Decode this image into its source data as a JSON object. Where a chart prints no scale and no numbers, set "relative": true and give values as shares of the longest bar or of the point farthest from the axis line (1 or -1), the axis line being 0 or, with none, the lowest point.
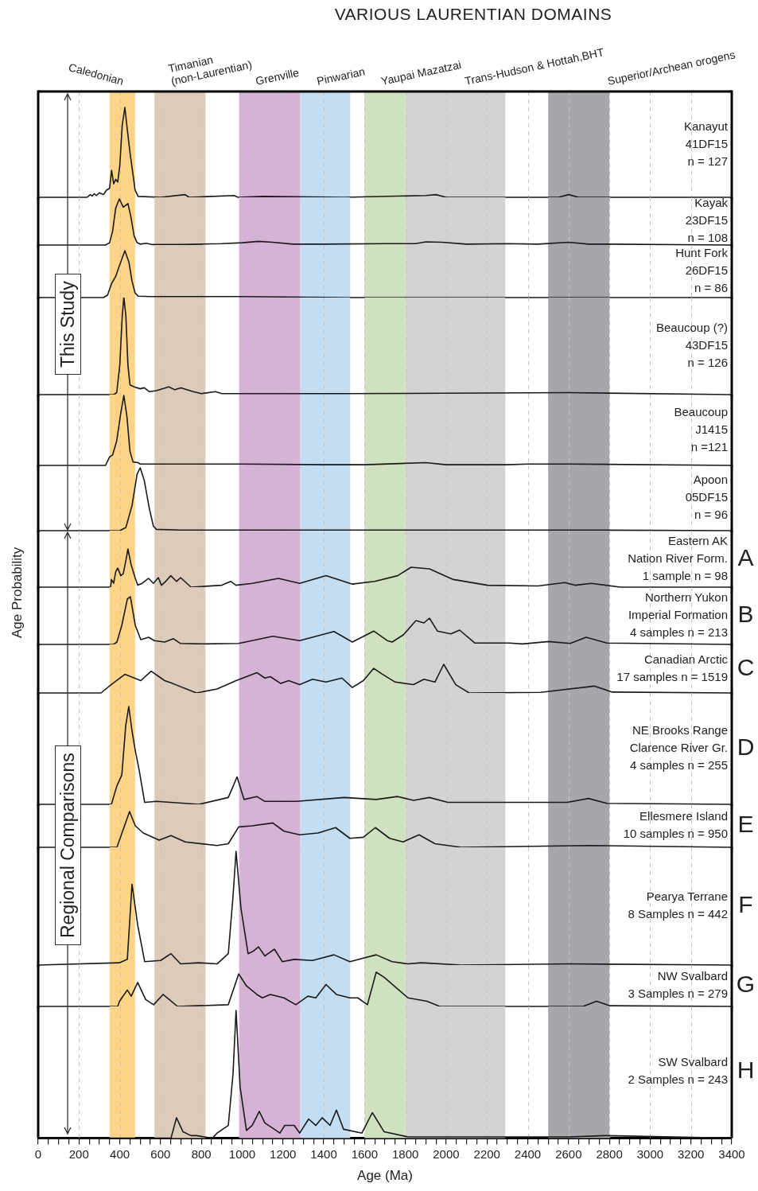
{
  "chart_data": [
    {
      "type": "other",
      "title": "VARIOUS LAURENTIAN DOMAINS",
      "ylabel": "Age Probability",
      "annotations": [
        "This Study",
        "Regional Comparisons"
      ]
    },
    {
      "type": "line",
      "relative": true,
      "xlim": [
        0,
        3400
      ],
      "xticks": [
        0,
        200,
        400,
        600,
        800,
        1000,
        1200,
        1400,
        1600,
        1800,
        2000,
        2200,
        2400,
        2600,
        2800,
        3000,
        3200,
        3400
      ],
      "tick_labels": false,
      "grid": "x",
      "color": "#1a1a1a",
      "bands": [
        {
          "axis": "x",
          "from": 350,
          "to": 475,
          "label": "Caledonian",
          "color": "#fdd488"
        },
        {
          "axis": "x",
          "from": 570,
          "to": 820,
          "label": "Timanian\n(non-Laurentian)",
          "color": "#dccbb9"
        },
        {
          "axis": "x",
          "from": 985,
          "to": 1285,
          "label": "Grenville",
          "color": "#d6b2d7"
        },
        {
          "axis": "x",
          "from": 1285,
          "to": 1530,
          "label": "Pinwarian",
          "color": "#c3ddf2"
        },
        {
          "axis": "x",
          "from": 1600,
          "to": 1800,
          "label": "Yaupai Mazatzai",
          "color": "#cfe1bf"
        },
        {
          "axis": "x",
          "from": 1800,
          "to": 2290,
          "label": "Trans-Hudson & Hottah,BHT",
          "color": "#d2d3d5"
        },
        {
          "axis": "x",
          "from": 2500,
          "to": 2800,
          "label": "Superior/Archean orogens",
          "color": "#a6a7aa"
        }
      ],
      "annotations": [
        "Kanayut",
        "41DF15",
        "n = 127"
      ],
      "x": [
        0,
        240,
        255,
        265,
        275,
        285,
        300,
        320,
        335,
        350,
        360,
        370,
        380,
        390,
        400,
        412,
        425,
        437,
        450,
        462,
        475,
        490,
        600,
        720,
        740,
        960,
        980,
        1100,
        1500,
        1900,
        1950,
        2000,
        2550,
        2600,
        2650,
        3400
      ],
      "values": [
        0,
        0,
        0.03,
        0.015,
        0.04,
        0.02,
        0.05,
        0.03,
        0.08,
        0.1,
        0.3,
        0.15,
        0.2,
        0.17,
        0.35,
        0.8,
        1,
        0.75,
        0.5,
        0.3,
        0.08,
        0.01,
        0,
        0.03,
        0,
        0.02,
        0,
        0.01,
        0,
        0.02,
        0.03,
        0,
        0,
        0.03,
        0,
        0
      ]
    },
    {
      "type": "line",
      "relative": true,
      "xlim": [
        0,
        3400
      ],
      "xticks": [
        0,
        200,
        400,
        600,
        800,
        1000,
        1200,
        1400,
        1600,
        1800,
        2000,
        2200,
        2400,
        2600,
        2800,
        3000,
        3200,
        3400
      ],
      "tick_labels": false,
      "grid": "x",
      "color": "#1a1a1a",
      "bands": [
        {
          "axis": "x",
          "from": 350,
          "to": 475,
          "color": "#fdd488"
        },
        {
          "axis": "x",
          "from": 570,
          "to": 820,
          "color": "#dccbb9"
        },
        {
          "axis": "x",
          "from": 985,
          "to": 1285,
          "color": "#d6b2d7"
        },
        {
          "axis": "x",
          "from": 1285,
          "to": 1530,
          "color": "#c3ddf2"
        },
        {
          "axis": "x",
          "from": 1600,
          "to": 1800,
          "color": "#cfe1bf"
        },
        {
          "axis": "x",
          "from": 1800,
          "to": 2290,
          "color": "#d2d3d5"
        },
        {
          "axis": "x",
          "from": 2500,
          "to": 2800,
          "color": "#a6a7aa"
        }
      ],
      "annotations": [
        "Kayak",
        "23DF15",
        "n = 108"
      ],
      "x": [
        0,
        330,
        350,
        365,
        380,
        398,
        417,
        440,
        455,
        470,
        485,
        500,
        530,
        560,
        700,
        800,
        900,
        1000,
        1080,
        1150,
        1250,
        1400,
        1700,
        1850,
        1900,
        1980,
        2100,
        2300,
        2450,
        2600,
        2700,
        2800,
        3400
      ],
      "values": [
        0,
        0,
        0.05,
        0.3,
        0.8,
        1,
        0.82,
        0.9,
        0.6,
        0.2,
        0.05,
        0.02,
        0.04,
        0.01,
        0.01,
        0.02,
        0.03,
        0.05,
        0.08,
        0.06,
        0.02,
        0.02,
        0.03,
        0.03,
        0.07,
        0.06,
        0.02,
        0.03,
        0.02,
        0.06,
        0.02,
        0.02,
        0
      ]
    },
    {
      "type": "line",
      "relative": true,
      "xlim": [
        0,
        3400
      ],
      "xticks": [
        0,
        200,
        400,
        600,
        800,
        1000,
        1200,
        1400,
        1600,
        1800,
        2000,
        2200,
        2400,
        2600,
        2800,
        3000,
        3200,
        3400
      ],
      "tick_labels": false,
      "grid": "x",
      "color": "#1a1a1a",
      "bands": [
        {
          "axis": "x",
          "from": 350,
          "to": 475,
          "color": "#fdd488"
        },
        {
          "axis": "x",
          "from": 570,
          "to": 820,
          "color": "#dccbb9"
        },
        {
          "axis": "x",
          "from": 985,
          "to": 1285,
          "color": "#d6b2d7"
        },
        {
          "axis": "x",
          "from": 1285,
          "to": 1530,
          "color": "#c3ddf2"
        },
        {
          "axis": "x",
          "from": 1600,
          "to": 1800,
          "color": "#cfe1bf"
        },
        {
          "axis": "x",
          "from": 1800,
          "to": 2290,
          "color": "#d2d3d5"
        },
        {
          "axis": "x",
          "from": 2500,
          "to": 2800,
          "color": "#a6a7aa"
        }
      ],
      "annotations": [
        "Hunt Fork",
        "26DF15",
        "n = 86"
      ],
      "x": [
        0,
        320,
        340,
        360,
        380,
        400,
        425,
        445,
        460,
        475,
        490,
        550,
        1000,
        1500,
        3400
      ],
      "values": [
        0,
        0,
        0.05,
        0.3,
        0.45,
        0.7,
        1,
        0.75,
        0.35,
        0.1,
        0.03,
        0.02,
        0.02,
        0,
        0
      ]
    },
    {
      "type": "line",
      "relative": true,
      "xlim": [
        0,
        3400
      ],
      "xticks": [
        0,
        200,
        400,
        600,
        800,
        1000,
        1200,
        1400,
        1600,
        1800,
        2000,
        2200,
        2400,
        2600,
        2800,
        3000,
        3200,
        3400
      ],
      "tick_labels": false,
      "grid": "x",
      "color": "#1a1a1a",
      "bands": [
        {
          "axis": "x",
          "from": 350,
          "to": 475,
          "color": "#fdd488"
        },
        {
          "axis": "x",
          "from": 570,
          "to": 820,
          "color": "#dccbb9"
        },
        {
          "axis": "x",
          "from": 985,
          "to": 1285,
          "color": "#d6b2d7"
        },
        {
          "axis": "x",
          "from": 1285,
          "to": 1530,
          "color": "#c3ddf2"
        },
        {
          "axis": "x",
          "from": 1600,
          "to": 1800,
          "color": "#cfe1bf"
        },
        {
          "axis": "x",
          "from": 1800,
          "to": 2290,
          "color": "#d2d3d5"
        },
        {
          "axis": "x",
          "from": 2500,
          "to": 2800,
          "color": "#a6a7aa"
        }
      ],
      "annotations": [
        "Beaucoup (?)",
        "43DF15",
        "n = 126"
      ],
      "x": [
        0,
        370,
        385,
        400,
        412,
        420,
        430,
        440,
        450,
        470,
        500,
        520,
        545,
        580,
        640,
        670,
        700,
        760,
        800,
        870,
        900,
        1500,
        2600,
        3400
      ],
      "values": [
        0,
        0,
        0.02,
        0.3,
        0.8,
        1,
        0.8,
        0.3,
        0.1,
        0.08,
        0.06,
        0.07,
        0.03,
        0.04,
        0.08,
        0.05,
        0.07,
        0.03,
        0.01,
        0.03,
        0.01,
        0.01,
        0.02,
        0
      ]
    },
    {
      "type": "line",
      "relative": true,
      "xlim": [
        0,
        3400
      ],
      "xticks": [
        0,
        200,
        400,
        600,
        800,
        1000,
        1200,
        1400,
        1600,
        1800,
        2000,
        2200,
        2400,
        2600,
        2800,
        3000,
        3200,
        3400
      ],
      "tick_labels": false,
      "grid": "x",
      "color": "#1a1a1a",
      "bands": [
        {
          "axis": "x",
          "from": 350,
          "to": 475,
          "color": "#fdd488"
        },
        {
          "axis": "x",
          "from": 570,
          "to": 820,
          "color": "#dccbb9"
        },
        {
          "axis": "x",
          "from": 985,
          "to": 1285,
          "color": "#d6b2d7"
        },
        {
          "axis": "x",
          "from": 1285,
          "to": 1530,
          "color": "#c3ddf2"
        },
        {
          "axis": "x",
          "from": 1600,
          "to": 1800,
          "color": "#cfe1bf"
        },
        {
          "axis": "x",
          "from": 1800,
          "to": 2290,
          "color": "#d2d3d5"
        },
        {
          "axis": "x",
          "from": 2500,
          "to": 2800,
          "color": "#a6a7aa"
        }
      ],
      "annotations": [
        "Beaucoup",
        "J1415",
        "n =121"
      ],
      "x": [
        0,
        330,
        350,
        365,
        385,
        405,
        420,
        435,
        450,
        465,
        490,
        500,
        1000,
        1400,
        1600,
        1900,
        2000,
        2300,
        2400,
        2600,
        3400
      ],
      "values": [
        0,
        0,
        0.12,
        0.15,
        0.35,
        0.75,
        1,
        0.7,
        0.2,
        0.05,
        0.04,
        0.02,
        0.02,
        0.01,
        0.01,
        0.04,
        0.01,
        0.01,
        0.02,
        0.02,
        0
      ]
    },
    {
      "type": "line",
      "relative": true,
      "xlim": [
        0,
        3400
      ],
      "xticks": [
        0,
        200,
        400,
        600,
        800,
        1000,
        1200,
        1400,
        1600,
        1800,
        2000,
        2200,
        2400,
        2600,
        2800,
        3000,
        3200,
        3400
      ],
      "tick_labels": false,
      "grid": "x",
      "color": "#1a1a1a",
      "bands": [
        {
          "axis": "x",
          "from": 350,
          "to": 475,
          "color": "#fdd488"
        },
        {
          "axis": "x",
          "from": 570,
          "to": 820,
          "color": "#dccbb9"
        },
        {
          "axis": "x",
          "from": 985,
          "to": 1285,
          "color": "#d6b2d7"
        },
        {
          "axis": "x",
          "from": 1285,
          "to": 1530,
          "color": "#c3ddf2"
        },
        {
          "axis": "x",
          "from": 1600,
          "to": 1800,
          "color": "#cfe1bf"
        },
        {
          "axis": "x",
          "from": 1800,
          "to": 2290,
          "color": "#d2d3d5"
        },
        {
          "axis": "x",
          "from": 2500,
          "to": 2800,
          "color": "#a6a7aa"
        }
      ],
      "annotations": [
        "Apoon",
        "05DF15",
        "n = 96"
      ],
      "x": [
        0,
        400,
        430,
        460,
        485,
        500,
        520,
        545,
        565,
        580,
        700,
        1500,
        2600,
        3400
      ],
      "values": [
        0,
        0,
        0.05,
        0.4,
        0.9,
        1,
        0.8,
        0.35,
        0.07,
        0.02,
        0.01,
        0.01,
        0.01,
        0
      ]
    },
    {
      "type": "line",
      "relative": true,
      "subtitle": "A",
      "xlim": [
        0,
        3400
      ],
      "xticks": [
        0,
        200,
        400,
        600,
        800,
        1000,
        1200,
        1400,
        1600,
        1800,
        2000,
        2200,
        2400,
        2600,
        2800,
        3000,
        3200,
        3400
      ],
      "tick_labels": false,
      "grid": "x",
      "color": "#1a1a1a",
      "bands": [
        {
          "axis": "x",
          "from": 350,
          "to": 475,
          "color": "#fdd488"
        },
        {
          "axis": "x",
          "from": 570,
          "to": 820,
          "color": "#dccbb9"
        },
        {
          "axis": "x",
          "from": 985,
          "to": 1285,
          "color": "#d6b2d7"
        },
        {
          "axis": "x",
          "from": 1285,
          "to": 1530,
          "color": "#c3ddf2"
        },
        {
          "axis": "x",
          "from": 1600,
          "to": 1800,
          "color": "#cfe1bf"
        },
        {
          "axis": "x",
          "from": 1800,
          "to": 2290,
          "color": "#d2d3d5"
        },
        {
          "axis": "x",
          "from": 2500,
          "to": 2800,
          "color": "#a6a7aa"
        }
      ],
      "annotations": [
        "Eastern AK",
        "Nation River Form.",
        "1 sample n = 98"
      ],
      "x": [
        0,
        355,
        359,
        370,
        380,
        390,
        405,
        417,
        430,
        440,
        455,
        475,
        488,
        510,
        541,
        565,
        589,
        604,
        625,
        650,
        678,
        698,
        749,
        900,
        944,
        970,
        1050,
        1178,
        1282,
        1411,
        1540,
        1650,
        1762,
        1828,
        1918,
        2035,
        2203,
        2450,
        2581,
        2632,
        2710,
        2854,
        3400
      ],
      "values": [
        0,
        0,
        0.2,
        0.1,
        0.4,
        0.5,
        0.3,
        0.35,
        0.7,
        1,
        0.6,
        0.25,
        0.05,
        0.1,
        0.23,
        0.1,
        0.25,
        0.05,
        0.15,
        0.3,
        0.15,
        0.25,
        0,
        0.05,
        0.15,
        0.05,
        0.1,
        0.23,
        0.1,
        0.3,
        0.08,
        0.15,
        0.3,
        0.52,
        0.48,
        0.2,
        0.05,
        0.03,
        0.12,
        0.05,
        0.1,
        0,
        0
      ]
    },
    {
      "type": "line",
      "relative": true,
      "subtitle": "B",
      "xlim": [
        0,
        3400
      ],
      "xticks": [
        0,
        200,
        400,
        600,
        800,
        1000,
        1200,
        1400,
        1600,
        1800,
        2000,
        2200,
        2400,
        2600,
        2800,
        3000,
        3200,
        3400
      ],
      "tick_labels": false,
      "grid": "x",
      "color": "#1a1a1a",
      "bands": [
        {
          "axis": "x",
          "from": 350,
          "to": 475,
          "color": "#fdd488"
        },
        {
          "axis": "x",
          "from": 570,
          "to": 820,
          "color": "#dccbb9"
        },
        {
          "axis": "x",
          "from": 985,
          "to": 1285,
          "color": "#d6b2d7"
        },
        {
          "axis": "x",
          "from": 1285,
          "to": 1530,
          "color": "#c3ddf2"
        },
        {
          "axis": "x",
          "from": 1600,
          "to": 1800,
          "color": "#cfe1bf"
        },
        {
          "axis": "x",
          "from": 1800,
          "to": 2290,
          "color": "#d2d3d5"
        },
        {
          "axis": "x",
          "from": 2500,
          "to": 2800,
          "color": "#a6a7aa"
        }
      ],
      "annotations": [
        "Northern Yukon",
        "Imperial Formation",
        "4 samples n = 213"
      ],
      "x": [
        0,
        370,
        386,
        410,
        437,
        452,
        476,
        503,
        541,
        570,
        620,
        663,
        698,
        800,
        983,
        1150,
        1282,
        1450,
        1540,
        1645,
        1711,
        1735,
        1790,
        1852,
        1891,
        1918,
        1957,
        2023,
        2066,
        2140,
        2308,
        2374,
        2503,
        2608,
        2686,
        2788,
        3400
      ],
      "values": [
        0,
        0,
        0.05,
        0.4,
        0.95,
        1,
        0.4,
        0.1,
        0.15,
        0.08,
        0.05,
        0.12,
        0.02,
        0.01,
        0.02,
        0.17,
        0.08,
        0.27,
        0.05,
        0.28,
        0.08,
        0.05,
        0.2,
        0.5,
        0.45,
        0.55,
        0.28,
        0.22,
        0.3,
        0.03,
        0.03,
        0.01,
        0.06,
        0.02,
        0.15,
        0.03,
        0
      ]
    },
    {
      "type": "line",
      "relative": true,
      "subtitle": "C",
      "xlim": [
        0,
        3400
      ],
      "xticks": [
        0,
        200,
        400,
        600,
        800,
        1000,
        1200,
        1400,
        1600,
        1800,
        2000,
        2200,
        2400,
        2600,
        2800,
        3000,
        3200,
        3400
      ],
      "tick_labels": false,
      "grid": "x",
      "color": "#1a1a1a",
      "bands": [
        {
          "axis": "x",
          "from": 350,
          "to": 475,
          "color": "#fdd488"
        },
        {
          "axis": "x",
          "from": 570,
          "to": 820,
          "color": "#dccbb9"
        },
        {
          "axis": "x",
          "from": 985,
          "to": 1285,
          "color": "#d6b2d7"
        },
        {
          "axis": "x",
          "from": 1285,
          "to": 1530,
          "color": "#c3ddf2"
        },
        {
          "axis": "x",
          "from": 1600,
          "to": 1800,
          "color": "#cfe1bf"
        },
        {
          "axis": "x",
          "from": 1800,
          "to": 2290,
          "color": "#d2d3d5"
        },
        {
          "axis": "x",
          "from": 2500,
          "to": 2800,
          "color": "#a6a7aa"
        }
      ],
      "annotations": [
        "Canadian Arctic",
        "17 samples n = 1519"
      ],
      "x": [
        0,
        308,
        360,
        425,
        503,
        554,
        620,
        659,
        776,
        877,
        970,
        1072,
        1111,
        1138,
        1189,
        1228,
        1282,
        1345,
        1411,
        1489,
        1540,
        1594,
        1645,
        1684,
        1750,
        1840,
        1891,
        1945,
        1988,
        2047,
        2113,
        2464,
        2725,
        2815,
        3400
      ],
      "values": [
        0,
        0,
        0.3,
        0.65,
        0.43,
        0.76,
        0.43,
        0.33,
        0,
        0.14,
        0.43,
        0.71,
        0.52,
        0.57,
        0.33,
        0.43,
        0.29,
        0.48,
        0.38,
        0.52,
        0.19,
        0.43,
        0.86,
        0.67,
        0.38,
        0.29,
        0.48,
        0.38,
        1,
        0.29,
        0,
        0.02,
        0.24,
        0.03,
        0
      ]
    },
    {
      "type": "line",
      "relative": true,
      "subtitle": "D",
      "xlim": [
        0,
        3400
      ],
      "xticks": [
        0,
        200,
        400,
        600,
        800,
        1000,
        1200,
        1400,
        1600,
        1800,
        2000,
        2200,
        2400,
        2600,
        2800,
        3000,
        3200,
        3400
      ],
      "tick_labels": false,
      "grid": "x",
      "color": "#1a1a1a",
      "bands": [
        {
          "axis": "x",
          "from": 350,
          "to": 475,
          "color": "#fdd488"
        },
        {
          "axis": "x",
          "from": 570,
          "to": 820,
          "color": "#dccbb9"
        },
        {
          "axis": "x",
          "from": 985,
          "to": 1285,
          "color": "#d6b2d7"
        },
        {
          "axis": "x",
          "from": 1285,
          "to": 1530,
          "color": "#c3ddf2"
        },
        {
          "axis": "x",
          "from": 1600,
          "to": 1800,
          "color": "#cfe1bf"
        },
        {
          "axis": "x",
          "from": 1800,
          "to": 2290,
          "color": "#d2d3d5"
        },
        {
          "axis": "x",
          "from": 2500,
          "to": 2800,
          "color": "#a6a7aa"
        }
      ],
      "annotations": [
        "NE Brooks Range",
        "Clarence River Gr.",
        "4 samples n = 255"
      ],
      "x": [
        0,
        359,
        386,
        410,
        429,
        444,
        460,
        476,
        495,
        522,
        581,
        788,
        932,
        975,
        1009,
        1072,
        1111,
        1267,
        1501,
        1657,
        1762,
        1840,
        1918,
        2008,
        2593,
        2698,
        2788,
        3400
      ],
      "values": [
        0,
        0,
        0.19,
        0.3,
        0.8,
        1,
        0.75,
        0.55,
        0.35,
        0.02,
        0.03,
        0,
        0.07,
        0.28,
        0.05,
        0.08,
        0.03,
        0.03,
        0.07,
        0.05,
        0.08,
        0.04,
        0.07,
        0.02,
        0.02,
        0.06,
        0.01,
        0
      ]
    },
    {
      "type": "line",
      "relative": true,
      "subtitle": "E",
      "xlim": [
        0,
        3400
      ],
      "xticks": [
        0,
        200,
        400,
        600,
        800,
        1000,
        1200,
        1400,
        1600,
        1800,
        2000,
        2200,
        2400,
        2600,
        2800,
        3000,
        3200,
        3400
      ],
      "tick_labels": false,
      "grid": "x",
      "color": "#1a1a1a",
      "bands": [
        {
          "axis": "x",
          "from": 350,
          "to": 475,
          "color": "#fdd488"
        },
        {
          "axis": "x",
          "from": 570,
          "to": 820,
          "color": "#dccbb9"
        },
        {
          "axis": "x",
          "from": 985,
          "to": 1285,
          "color": "#d6b2d7"
        },
        {
          "axis": "x",
          "from": 1285,
          "to": 1530,
          "color": "#c3ddf2"
        },
        {
          "axis": "x",
          "from": 1600,
          "to": 1800,
          "color": "#cfe1bf"
        },
        {
          "axis": "x",
          "from": 1800,
          "to": 2290,
          "color": "#d2d3d5"
        },
        {
          "axis": "x",
          "from": 2500,
          "to": 2800,
          "color": "#a6a7aa"
        }
      ],
      "annotations": [
        "Ellesmere Island",
        "10 samples n = 950"
      ],
      "x": [
        0,
        386,
        448,
        476,
        515,
        593,
        651,
        721,
        877,
        932,
        983,
        1049,
        1150,
        1205,
        1282,
        1372,
        1458,
        1528,
        1594,
        1653,
        1723,
        1789,
        1867,
        1945,
        2074,
        2698,
        3400
      ],
      "values": [
        0,
        0,
        1,
        0.6,
        0.4,
        0.2,
        0.33,
        0.15,
        0.05,
        0.1,
        0.57,
        0.6,
        0.68,
        0.45,
        0.35,
        0.4,
        0.55,
        0.25,
        0.28,
        0.55,
        0.25,
        0.15,
        0.35,
        0.1,
        0,
        0.05,
        0
      ]
    },
    {
      "type": "line",
      "relative": true,
      "subtitle": "F",
      "xlim": [
        0,
        3400
      ],
      "xticks": [
        0,
        200,
        400,
        600,
        800,
        1000,
        1200,
        1400,
        1600,
        1800,
        2000,
        2200,
        2400,
        2600,
        2800,
        3000,
        3200,
        3400
      ],
      "tick_labels": false,
      "grid": "x",
      "color": "#1a1a1a",
      "bands": [
        {
          "axis": "x",
          "from": 350,
          "to": 475,
          "color": "#fdd488"
        },
        {
          "axis": "x",
          "from": 570,
          "to": 820,
          "color": "#dccbb9"
        },
        {
          "axis": "x",
          "from": 985,
          "to": 1285,
          "color": "#d6b2d7"
        },
        {
          "axis": "x",
          "from": 1285,
          "to": 1530,
          "color": "#c3ddf2"
        },
        {
          "axis": "x",
          "from": 1600,
          "to": 1800,
          "color": "#cfe1bf"
        },
        {
          "axis": "x",
          "from": 1800,
          "to": 2290,
          "color": "#d2d3d5"
        },
        {
          "axis": "x",
          "from": 2500,
          "to": 2800,
          "color": "#a6a7aa"
        }
      ],
      "annotations": [
        "Pearya Terrane",
        "8 Samples n = 442"
      ],
      "x": [
        0,
        398,
        437,
        460,
        488,
        522,
        600,
        651,
        698,
        788,
        877,
        932,
        955,
        970,
        994,
        1029,
        1053,
        1080,
        1111,
        1158,
        1197,
        1255,
        1345,
        1450,
        1528,
        1657,
        1735,
        1813,
        1879,
        2074,
        2600,
        3400
      ],
      "values": [
        0,
        0.02,
        0.05,
        0.71,
        0.35,
        0.03,
        0.04,
        0.1,
        0.01,
        0.02,
        0.01,
        0.1,
        0.6,
        1,
        0.5,
        0.1,
        0.12,
        0.16,
        0.08,
        0.14,
        0.03,
        0.05,
        0.04,
        0.09,
        0.03,
        0.09,
        0.03,
        0.01,
        0.02,
        0,
        0.01,
        0
      ]
    },
    {
      "type": "line",
      "relative": true,
      "subtitle": "G",
      "xlim": [
        0,
        3400
      ],
      "xticks": [
        0,
        200,
        400,
        600,
        800,
        1000,
        1200,
        1400,
        1600,
        1800,
        2000,
        2200,
        2400,
        2600,
        2800,
        3000,
        3200,
        3400
      ],
      "tick_labels": false,
      "grid": "x",
      "color": "#1a1a1a",
      "bands": [
        {
          "axis": "x",
          "from": 350,
          "to": 475,
          "color": "#fdd488"
        },
        {
          "axis": "x",
          "from": 570,
          "to": 820,
          "color": "#dccbb9"
        },
        {
          "axis": "x",
          "from": 985,
          "to": 1285,
          "color": "#d6b2d7"
        },
        {
          "axis": "x",
          "from": 1285,
          "to": 1530,
          "color": "#c3ddf2"
        },
        {
          "axis": "x",
          "from": 1600,
          "to": 1800,
          "color": "#cfe1bf"
        },
        {
          "axis": "x",
          "from": 1800,
          "to": 2290,
          "color": "#d2d3d5"
        },
        {
          "axis": "x",
          "from": 2500,
          "to": 2800,
          "color": "#a6a7aa"
        }
      ],
      "annotations": [
        "NW Svalbard",
        "3 Samples n = 279"
      ],
      "x": [
        0,
        390,
        398,
        410,
        437,
        456,
        488,
        527,
        566,
        612,
        659,
        683,
        932,
        983,
        1021,
        1072,
        1099,
        1138,
        1205,
        1263,
        1322,
        1361,
        1411,
        1462,
        1528,
        1567,
        1614,
        1657,
        1696,
        1813,
        1906,
        1969,
        2671,
        2737,
        2803,
        3400
      ],
      "values": [
        0,
        0,
        0.14,
        0.25,
        0.48,
        0.3,
        0.7,
        0.2,
        0.05,
        0.35,
        0.12,
        0,
        0.05,
        0.95,
        0.6,
        0.35,
        0.25,
        0.35,
        0.25,
        0.05,
        0.3,
        0.25,
        0.64,
        0.35,
        0.25,
        0.25,
        0.05,
        1,
        0.85,
        0.25,
        0.15,
        0,
        0,
        0.15,
        0.02,
        0
      ]
    },
    {
      "type": "line",
      "relative": true,
      "subtitle": "H",
      "xlabel": "Age (Ma)",
      "xlim": [
        0,
        3400
      ],
      "xticks": [
        0,
        {
          "value": 50,
          "label": null
        },
        {
          "value": 100,
          "label": null
        },
        {
          "value": 150,
          "label": null
        },
        200,
        {
          "value": 250,
          "label": null
        },
        {
          "value": 300,
          "label": null
        },
        {
          "value": 350,
          "label": null
        },
        400,
        {
          "value": 450,
          "label": null
        },
        {
          "value": 500,
          "label": null
        },
        {
          "value": 550,
          "label": null
        },
        600,
        {
          "value": 650,
          "label": null
        },
        {
          "value": 700,
          "label": null
        },
        {
          "value": 750,
          "label": null
        },
        800,
        {
          "value": 850,
          "label": null
        },
        {
          "value": 900,
          "label": null
        },
        {
          "value": 950,
          "label": null
        },
        1000,
        {
          "value": 1050,
          "label": null
        },
        {
          "value": 1100,
          "label": null
        },
        {
          "value": 1150,
          "label": null
        },
        1200,
        {
          "value": 1250,
          "label": null
        },
        {
          "value": 1300,
          "label": null
        },
        {
          "value": 1350,
          "label": null
        },
        1400,
        {
          "value": 1450,
          "label": null
        },
        {
          "value": 1500,
          "label": null
        },
        {
          "value": 1550,
          "label": null
        },
        1600,
        {
          "value": 1650,
          "label": null
        },
        {
          "value": 1700,
          "label": null
        },
        {
          "value": 1750,
          "label": null
        },
        1800,
        {
          "value": 1850,
          "label": null
        },
        {
          "value": 1900,
          "label": null
        },
        {
          "value": 1950,
          "label": null
        },
        2000,
        {
          "value": 2050,
          "label": null
        },
        {
          "value": 2100,
          "label": null
        },
        {
          "value": 2150,
          "label": null
        },
        2200,
        {
          "value": 2250,
          "label": null
        },
        {
          "value": 2300,
          "label": null
        },
        {
          "value": 2350,
          "label": null
        },
        2400,
        {
          "value": 2450,
          "label": null
        },
        {
          "value": 2500,
          "label": null
        },
        {
          "value": 2550,
          "label": null
        },
        2600,
        {
          "value": 2650,
          "label": null
        },
        {
          "value": 2700,
          "label": null
        },
        {
          "value": 2750,
          "label": null
        },
        2800,
        {
          "value": 2850,
          "label": null
        },
        {
          "value": 2900,
          "label": null
        },
        {
          "value": 2950,
          "label": null
        },
        3000,
        {
          "value": 3050,
          "label": null
        },
        {
          "value": 3100,
          "label": null
        },
        {
          "value": 3150,
          "label": null
        },
        3200,
        {
          "value": 3250,
          "label": null
        },
        {
          "value": 3300,
          "label": null
        },
        {
          "value": 3350,
          "label": null
        },
        3400
      ],
      "tick_labels": "x",
      "grid": "x",
      "color": "#1a1a1a",
      "bands": [
        {
          "axis": "x",
          "from": 350,
          "to": 475,
          "color": "#fdd488"
        },
        {
          "axis": "x",
          "from": 570,
          "to": 820,
          "color": "#dccbb9"
        },
        {
          "axis": "x",
          "from": 985,
          "to": 1285,
          "color": "#d6b2d7"
        },
        {
          "axis": "x",
          "from": 1285,
          "to": 1530,
          "color": "#c3ddf2"
        },
        {
          "axis": "x",
          "from": 1600,
          "to": 1800,
          "color": "#cfe1bf"
        },
        {
          "axis": "x",
          "from": 1800,
          "to": 2290,
          "color": "#d2d3d5"
        },
        {
          "axis": "x",
          "from": 2500,
          "to": 2800,
          "color": "#a6a7aa"
        }
      ],
      "annotations": [
        "SW Svalbard",
        "2 Samples n = 243"
      ],
      "x": [
        0,
        651,
        678,
        710,
        749,
        776,
        854,
        877,
        932,
        955,
        970,
        990,
        1021,
        1049,
        1084,
        1111,
        1185,
        1209,
        1255,
        1282,
        1326,
        1361,
        1392,
        1431,
        1462,
        1497,
        1587,
        1638,
        1696,
        1813,
        2600,
        2780,
        3400
      ],
      "values": [
        0,
        0,
        0.16,
        0.05,
        0.02,
        0.02,
        0,
        0.04,
        0.1,
        0.5,
        1,
        0.4,
        0.06,
        0.1,
        0.21,
        0.12,
        0.04,
        0.1,
        0.1,
        0.04,
        0.15,
        0.1,
        0.16,
        0.1,
        0.22,
        0.07,
        0.04,
        0.2,
        0.05,
        0.01,
        0.01,
        0.02,
        0
      ]
    }
  ]
}
